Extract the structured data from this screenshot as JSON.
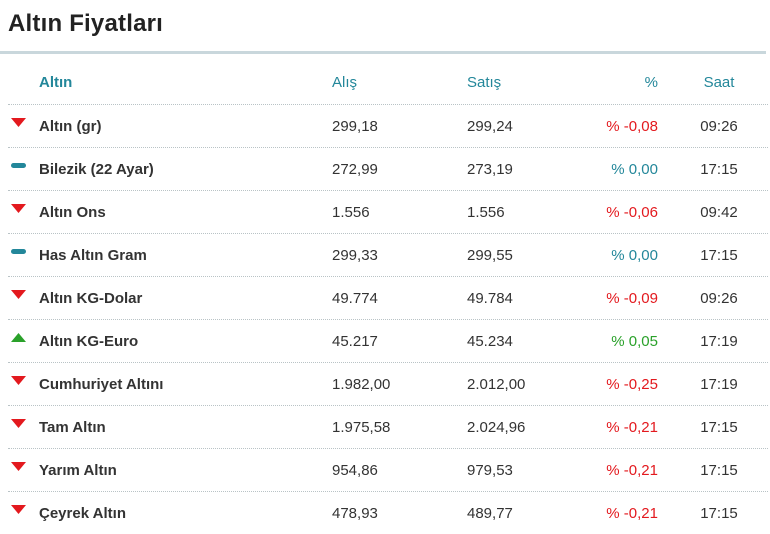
{
  "title": "Altın Fiyatları",
  "columns": {
    "name": "Altın",
    "buy": "Alış",
    "sell": "Satış",
    "change": "%",
    "time": "Saat"
  },
  "colors": {
    "down": "#e3191e",
    "flat": "#23879a",
    "up": "#2aa12a",
    "header": "#23879a"
  },
  "rows": [
    {
      "trend": "down",
      "icon": "arrow-down-icon",
      "name": "Altın (gr)",
      "buy": "299,18",
      "sell": "299,24",
      "change": "% -0,08",
      "time": "09:26"
    },
    {
      "trend": "flat",
      "icon": "dash-icon",
      "name": "Bilezik (22 Ayar)",
      "buy": "272,99",
      "sell": "273,19",
      "change": "% 0,00",
      "time": "17:15"
    },
    {
      "trend": "down",
      "icon": "arrow-down-icon",
      "name": "Altın Ons",
      "buy": "1.556",
      "sell": "1.556",
      "change": "% -0,06",
      "time": "09:42"
    },
    {
      "trend": "flat",
      "icon": "dash-icon",
      "name": "Has Altın Gram",
      "buy": "299,33",
      "sell": "299,55",
      "change": "% 0,00",
      "time": "17:15"
    },
    {
      "trend": "down",
      "icon": "arrow-down-icon",
      "name": "Altın KG-Dolar",
      "buy": "49.774",
      "sell": "49.784",
      "change": "% -0,09",
      "time": "09:26"
    },
    {
      "trend": "up",
      "icon": "arrow-up-icon",
      "name": "Altın KG-Euro",
      "buy": "45.217",
      "sell": "45.234",
      "change": "% 0,05",
      "time": "17:19"
    },
    {
      "trend": "down",
      "icon": "arrow-down-icon",
      "name": "Cumhuriyet Altını",
      "buy": "1.982,00",
      "sell": "2.012,00",
      "change": "% -0,25",
      "time": "17:19"
    },
    {
      "trend": "down",
      "icon": "arrow-down-icon",
      "name": "Tam Altın",
      "buy": "1.975,58",
      "sell": "2.024,96",
      "change": "% -0,21",
      "time": "17:15"
    },
    {
      "trend": "down",
      "icon": "arrow-down-icon",
      "name": "Yarım Altın",
      "buy": "954,86",
      "sell": "979,53",
      "change": "% -0,21",
      "time": "17:15"
    },
    {
      "trend": "down",
      "icon": "arrow-down-icon",
      "name": "Çeyrek Altın",
      "buy": "478,93",
      "sell": "489,77",
      "change": "% -0,21",
      "time": "17:15"
    }
  ]
}
